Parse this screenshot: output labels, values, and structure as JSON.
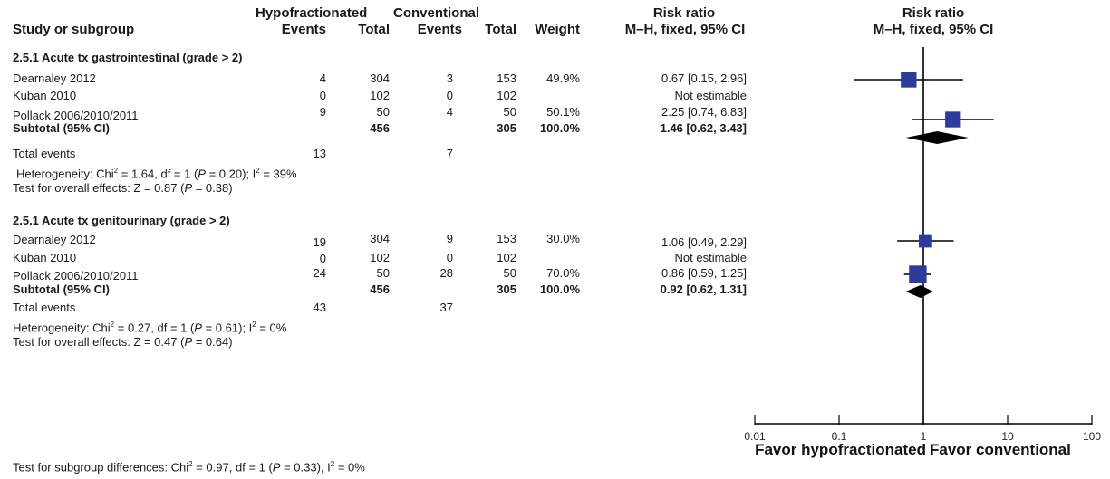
{
  "header": {
    "group1_name": "Hypofractionated",
    "group2_name": "Conventional",
    "rr_title": "Risk ratio",
    "col_study": "Study or subgroup",
    "col_events1": "Events",
    "col_total1": "Total",
    "col_events2": "Events",
    "col_total2": "Total",
    "col_weight": "Weight",
    "col_rr": "M–H, fixed, 95% CI",
    "plot_title": "Risk ratio",
    "plot_subtitle": "M–H, fixed, 95% CI"
  },
  "sections": [
    {
      "title": "2.5.1 Acute tx gastrointestinal (grade > 2)",
      "studies": [
        {
          "name": "Dearnaley 2012",
          "events1": "4",
          "total1": "304",
          "events2": "3",
          "total2": "153",
          "weight": "49.9%",
          "ci_text": "0.67 [0.15, 2.96]"
        },
        {
          "name": "Kuban 2010",
          "events1": "0",
          "total1": "102",
          "events2": "0",
          "total2": "102",
          "weight": "",
          "ci_text": "Not estimable"
        },
        {
          "name": "Pollack 2006/2010/2011",
          "events1": "9",
          "total1": "50",
          "events2": "4",
          "total2": "50",
          "weight": "50.1%",
          "ci_text": "2.25 [0.74, 6.83]"
        }
      ],
      "subtotal": {
        "label": "Subtotal (95% CI)",
        "total1": "456",
        "total2": "305",
        "weight": "100.0%",
        "ci_text": "1.46 [0.62, 3.43]"
      },
      "total_events": {
        "label": "Total events",
        "events1": "13",
        "events2": "7"
      },
      "heterogeneity": {
        "pre": "Heterogeneity: Chi",
        "sup": "2",
        "mid1": " = 1.64, df = 1 (",
        "p": "P",
        "mid2": " = 0.20); I",
        "sup2": "2",
        "end": " =  39%"
      },
      "overall": {
        "pre": "Test for overall effects: Z = 0.87 (",
        "p": "P",
        "end": " = 0.38)"
      }
    },
    {
      "title": "2.5.1 Acute tx genitourinary (grade > 2)",
      "studies": [
        {
          "name": "Dearnaley 2012",
          "events1": "19",
          "total1": "304",
          "events2": "9",
          "total2": "153",
          "weight": "30.0%",
          "ci_text": "1.06 [0.49, 2.29]"
        },
        {
          "name": "Kuban 2010",
          "events1": "0",
          "total1": "102",
          "events2": "0",
          "total2": "102",
          "weight": "",
          "ci_text": "Not estimable"
        },
        {
          "name": "Pollack 2006/2010/2011",
          "events1": "24",
          "total1": "50",
          "events2": "28",
          "total2": "50",
          "weight": "70.0%",
          "ci_text": "0.86 [0.59, 1.25]"
        }
      ],
      "subtotal": {
        "label": "Subtotal (95% CI)",
        "total1": "456",
        "total2": "305",
        "weight": "100.0%",
        "ci_text": "0.92 [0.62, 1.31]"
      },
      "total_events": {
        "label": "Total events",
        "events1": "43",
        "events2": "37"
      },
      "heterogeneity": {
        "pre": "Heterogeneity: Chi",
        "sup": "2",
        "mid1": " = 0.27, df = 1 (",
        "p": "P",
        "mid2": " = 0.61); I",
        "sup2": "2",
        "end": " =  0%"
      },
      "overall": {
        "pre": "Test for overall effects: Z = 0.47 (",
        "p": "P",
        "end": " = 0.64)"
      }
    }
  ],
  "subgroup_test": {
    "pre": "Test for subgroup differences: Chi",
    "sup": "2",
    "mid": " = 0.97, df = 1 (",
    "p": "P",
    "end": " = 0.33), I",
    "sup2": "2",
    "end2": " = 0%"
  },
  "chart_data": {
    "type": "forest",
    "scale": "log",
    "xlim": [
      0.01,
      100
    ],
    "x_ticks": [
      "0.01",
      "0.1",
      "1",
      "10",
      "100"
    ],
    "x_tick_values": [
      0.01,
      0.1,
      1,
      10,
      100
    ],
    "reference_line": 1,
    "favor_left": "Favor hypofractionated",
    "favor_right": "Favor conventional",
    "marker_color": "#2e3a9c",
    "diamond_color": "#000000",
    "studies": [
      {
        "section": 0,
        "name": "Dearnaley 2012",
        "rr": 0.67,
        "ci": [
          0.15,
          2.96
        ],
        "weight": 49.9
      },
      {
        "section": 0,
        "name": "Pollack 2006/2010/2011",
        "rr": 2.25,
        "ci": [
          0.74,
          6.83
        ],
        "weight": 50.1
      },
      {
        "section": 1,
        "name": "Dearnaley 2012",
        "rr": 1.06,
        "ci": [
          0.49,
          2.29
        ],
        "weight": 30.0
      },
      {
        "section": 1,
        "name": "Pollack 2006/2010/2011",
        "rr": 0.86,
        "ci": [
          0.59,
          1.25
        ],
        "weight": 70.0
      }
    ],
    "subtotals": [
      {
        "section": 0,
        "rr": 1.46,
        "ci": [
          0.62,
          3.43
        ]
      },
      {
        "section": 1,
        "rr": 0.92,
        "ci": [
          0.62,
          1.31
        ]
      }
    ]
  }
}
